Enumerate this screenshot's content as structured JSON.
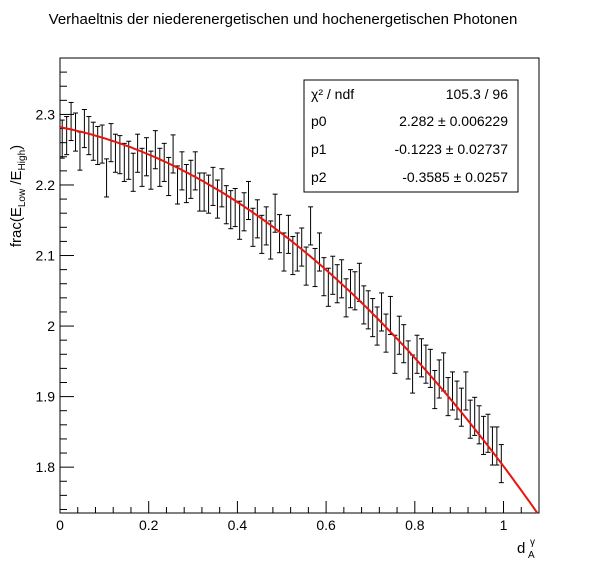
{
  "chart_data": {
    "type": "scatter",
    "title": "Verhaeltnis der niederenergetischen und hochenergetischen Photonen",
    "ylabel": {
      "main": "frac(E",
      "sub1": "Low",
      "mid": " /E",
      "sub2": "High",
      "close": ")"
    },
    "xlabel": {
      "main": "d",
      "sub": "A",
      "sup": "γ"
    },
    "xlim": [
      0,
      1.08
    ],
    "ylim": [
      1.735,
      2.38
    ],
    "x_ticks": [
      0,
      0.2,
      0.4,
      0.6,
      0.8,
      1
    ],
    "x_tick_labels": [
      "0",
      "0.2",
      "0.4",
      "0.6",
      "0.8",
      "1"
    ],
    "y_ticks": [
      1.8,
      1.9,
      2.0,
      2.1,
      2.2,
      2.3
    ],
    "y_tick_labels": [
      "1.8",
      "1.9",
      "2",
      "2.1",
      "2.2",
      "2.3"
    ],
    "fit": {
      "function": "pol2",
      "p0": 2.282,
      "p1": -0.1223,
      "p2": -0.3585,
      "color": "#e8150f"
    },
    "marker_color": "#000000",
    "points_x": [
      0.005,
      0.015,
      0.025,
      0.035,
      0.045,
      0.055,
      0.065,
      0.075,
      0.085,
      0.095,
      0.105,
      0.115,
      0.125,
      0.135,
      0.145,
      0.155,
      0.165,
      0.175,
      0.185,
      0.195,
      0.205,
      0.215,
      0.225,
      0.235,
      0.245,
      0.255,
      0.265,
      0.275,
      0.285,
      0.295,
      0.305,
      0.315,
      0.325,
      0.335,
      0.345,
      0.355,
      0.365,
      0.375,
      0.385,
      0.395,
      0.405,
      0.415,
      0.425,
      0.435,
      0.445,
      0.455,
      0.465,
      0.475,
      0.485,
      0.495,
      0.505,
      0.515,
      0.525,
      0.535,
      0.545,
      0.555,
      0.565,
      0.575,
      0.585,
      0.595,
      0.605,
      0.615,
      0.625,
      0.635,
      0.645,
      0.655,
      0.665,
      0.675,
      0.685,
      0.695,
      0.705,
      0.715,
      0.725,
      0.735,
      0.745,
      0.755,
      0.765,
      0.775,
      0.785,
      0.795,
      0.805,
      0.815,
      0.825,
      0.835,
      0.845,
      0.855,
      0.865,
      0.875,
      0.885,
      0.895,
      0.905,
      0.915,
      0.925,
      0.935,
      0.945,
      0.955,
      0.965,
      0.975,
      0.985,
      0.995
    ],
    "points_y": [
      2.265,
      2.27,
      2.29,
      2.275,
      2.248,
      2.28,
      2.27,
      2.262,
      2.256,
      2.258,
      2.21,
      2.26,
      2.245,
      2.243,
      2.232,
      2.235,
      2.218,
      2.245,
      2.225,
      2.24,
      2.221,
      2.25,
      2.225,
      2.232,
      2.212,
      2.244,
      2.2,
      2.22,
      2.202,
      2.208,
      2.22,
      2.19,
      2.19,
      2.187,
      2.198,
      2.18,
      2.196,
      2.172,
      2.165,
      2.168,
      2.15,
      2.162,
      2.178,
      2.14,
      2.152,
      2.13,
      2.142,
      2.122,
      2.16,
      2.131,
      2.105,
      2.13,
      2.1,
      2.105,
      2.112,
      2.085,
      2.142,
      2.083,
      2.105,
      2.07,
      2.055,
      2.072,
      2.06,
      2.067,
      2.04,
      2.053,
      2.05,
      2.062,
      2.03,
      2.023,
      2.012,
      2.0,
      2.02,
      1.99,
      2.015,
      1.96,
      1.987,
      1.975,
      1.952,
      1.932,
      1.96,
      1.955,
      1.946,
      1.94,
      1.91,
      1.925,
      1.935,
      1.9,
      1.908,
      1.895,
      1.885,
      1.908,
      1.868,
      1.872,
      1.86,
      1.845,
      1.848,
      1.83,
      1.83,
      1.805
    ],
    "error_y": 0.027
  },
  "stats_box": {
    "rows": [
      {
        "label": "χ² / ndf",
        "value": "105.3 / 96"
      },
      {
        "label": "p0",
        "value": "2.282 ± 0.006229"
      },
      {
        "label": "p1",
        "value": "-0.1223 ± 0.02737"
      },
      {
        "label": "p2",
        "value": "-0.3585 ± 0.0257"
      }
    ]
  }
}
